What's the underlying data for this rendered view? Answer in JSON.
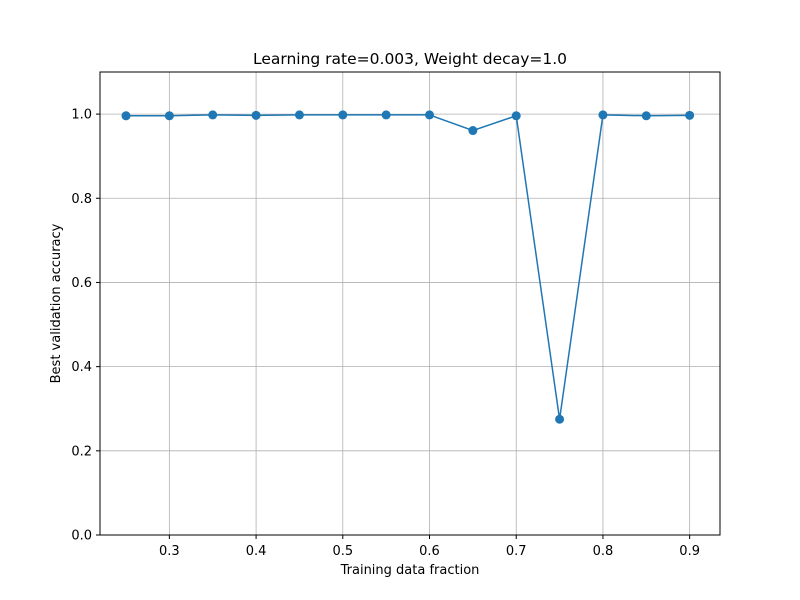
{
  "chart_data": {
    "type": "line",
    "title": "Learning rate=0.003, Weight decay=1.0",
    "xlabel": "Training data fraction",
    "ylabel": "Best validation accuracy",
    "xlim": [
      0.22,
      0.935
    ],
    "ylim": [
      0.0,
      1.1
    ],
    "xticks": [
      0.3,
      0.4,
      0.5,
      0.6,
      0.7,
      0.8,
      0.9
    ],
    "xtick_labels": [
      "0.3",
      "0.4",
      "0.5",
      "0.6",
      "0.7",
      "0.8",
      "0.9"
    ],
    "yticks": [
      0.0,
      0.2,
      0.4,
      0.6,
      0.8,
      1.0
    ],
    "ytick_labels": [
      "0.0",
      "0.2",
      "0.4",
      "0.6",
      "0.8",
      "1.0"
    ],
    "grid": true,
    "legend": false,
    "series": [
      {
        "color": "#1f77b4",
        "marker": "circle",
        "x": [
          0.25,
          0.3,
          0.35,
          0.4,
          0.45,
          0.5,
          0.55,
          0.6,
          0.65,
          0.7,
          0.75,
          0.8,
          0.85,
          0.9
        ],
        "y": [
          0.996,
          0.996,
          0.998,
          0.997,
          0.998,
          0.998,
          0.998,
          0.998,
          0.961,
          0.996,
          0.275,
          0.998,
          0.996,
          0.997
        ]
      }
    ]
  },
  "colors": {
    "line": "#1f77b4",
    "grid": "#b0b0b0",
    "axes": "#000000",
    "background": "#ffffff"
  }
}
